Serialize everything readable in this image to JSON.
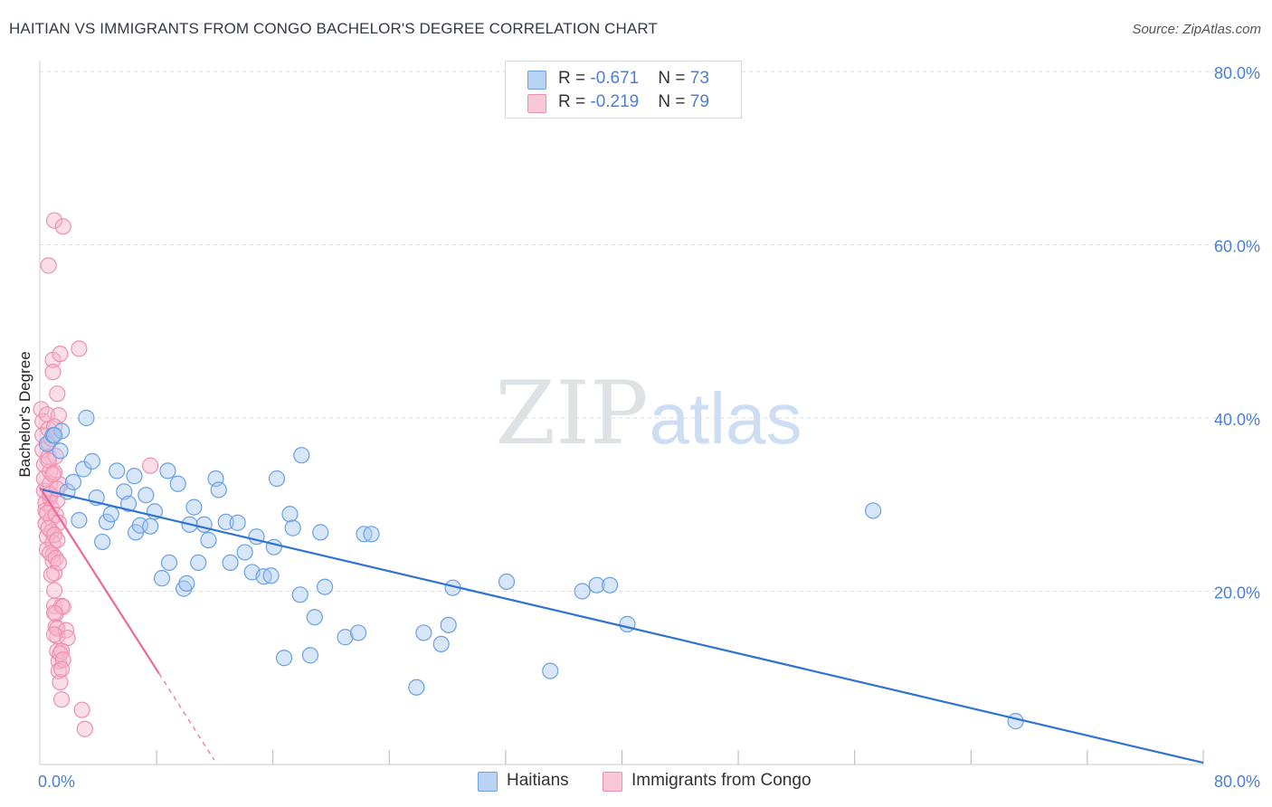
{
  "header": {
    "title": "HAITIAN VS IMMIGRANTS FROM CONGO BACHELOR'S DEGREE CORRELATION CHART",
    "source": "Source: ZipAtlas.com"
  },
  "watermark": {
    "zip": "ZIP",
    "atlas": "atlas"
  },
  "legend_top": {
    "rows": [
      {
        "r_label": "R = ",
        "r_value": "-0.671",
        "n_label": "N = ",
        "n_value": "73",
        "color": "#6aa0e6"
      },
      {
        "r_label": "R = ",
        "r_value": "-0.219",
        "n_label": "N = ",
        "n_value": "79",
        "color": "#ef8fb0"
      }
    ]
  },
  "legend_bottom": {
    "items": [
      {
        "label": "Haitians",
        "color": "#6aa0e6"
      },
      {
        "label": "Immigrants from Congo",
        "color": "#ef8fb0"
      }
    ]
  },
  "colors": {
    "haitians_fill": "#a9c8f1",
    "haitians_stroke": "#6aa0e6",
    "haitians_line": "#2f74d0",
    "congo_fill": "#f6b6cb",
    "congo_stroke": "#ef8fb0",
    "congo_line": "#e9699a",
    "grid": "#d8dde6",
    "tick_text": "#4a7fd4"
  },
  "chart_data": {
    "type": "scatter",
    "title": "HAITIAN VS IMMIGRANTS FROM CONGO BACHELOR'S DEGREE CORRELATION CHART",
    "xlabel": "",
    "ylabel": "Bachelor's Degree",
    "xlim": [
      0,
      80
    ],
    "ylim": [
      0,
      80
    ],
    "x_tick_labels": [
      {
        "value": 0,
        "label": "0.0%"
      },
      {
        "value": 80,
        "label": "80.0%"
      }
    ],
    "y_tick_labels": [
      {
        "value": 20,
        "label": "20.0%"
      },
      {
        "value": 40,
        "label": "40.0%"
      },
      {
        "value": 60,
        "label": "60.0%"
      },
      {
        "value": 80,
        "label": "80.0%"
      }
    ],
    "y_gridlines": [
      20,
      40,
      60,
      80
    ],
    "x_minor_ticks": [
      8,
      16,
      24,
      32,
      40,
      48,
      56,
      64,
      72
    ],
    "series": [
      {
        "name": "Haitians",
        "r": -0.671,
        "n": 73,
        "trend": {
          "x": [
            0,
            80
          ],
          "y": [
            31.8,
            0.2
          ],
          "dashed_to": null
        },
        "points": [
          [
            0.5,
            37.0
          ],
          [
            0.9,
            38.0
          ],
          [
            1.4,
            36.2
          ],
          [
            1.5,
            38.5
          ],
          [
            3.2,
            40.0
          ],
          [
            1.9,
            31.5
          ],
          [
            2.3,
            32.6
          ],
          [
            2.7,
            28.2
          ],
          [
            3.0,
            34.1
          ],
          [
            3.6,
            35.0
          ],
          [
            3.9,
            30.8
          ],
          [
            4.3,
            25.7
          ],
          [
            4.6,
            28.0
          ],
          [
            4.9,
            28.9
          ],
          [
            5.3,
            33.9
          ],
          [
            5.8,
            31.5
          ],
          [
            6.1,
            30.1
          ],
          [
            6.5,
            33.3
          ],
          [
            6.6,
            26.8
          ],
          [
            6.9,
            27.6
          ],
          [
            7.3,
            31.1
          ],
          [
            7.6,
            27.5
          ],
          [
            7.9,
            29.2
          ],
          [
            8.4,
            21.5
          ],
          [
            8.8,
            33.9
          ],
          [
            8.9,
            23.3
          ],
          [
            9.5,
            32.4
          ],
          [
            9.9,
            20.3
          ],
          [
            10.1,
            20.9
          ],
          [
            10.3,
            27.7
          ],
          [
            10.6,
            29.7
          ],
          [
            10.9,
            23.3
          ],
          [
            11.3,
            27.7
          ],
          [
            11.6,
            25.9
          ],
          [
            12.1,
            33.0
          ],
          [
            12.3,
            31.7
          ],
          [
            12.8,
            28.0
          ],
          [
            13.1,
            23.3
          ],
          [
            13.6,
            27.9
          ],
          [
            14.1,
            24.5
          ],
          [
            14.6,
            22.2
          ],
          [
            14.9,
            26.3
          ],
          [
            15.4,
            21.7
          ],
          [
            15.9,
            21.8
          ],
          [
            16.1,
            25.1
          ],
          [
            16.3,
            33.0
          ],
          [
            16.8,
            12.3
          ],
          [
            17.2,
            28.9
          ],
          [
            17.4,
            27.3
          ],
          [
            17.9,
            19.6
          ],
          [
            18.0,
            35.7
          ],
          [
            18.6,
            12.6
          ],
          [
            18.9,
            17.0
          ],
          [
            19.3,
            26.8
          ],
          [
            19.6,
            20.5
          ],
          [
            21.0,
            14.7
          ],
          [
            21.9,
            15.2
          ],
          [
            22.3,
            26.6
          ],
          [
            22.8,
            26.6
          ],
          [
            25.9,
            8.9
          ],
          [
            26.4,
            15.2
          ],
          [
            27.6,
            13.9
          ],
          [
            28.1,
            16.1
          ],
          [
            28.4,
            20.4
          ],
          [
            32.1,
            21.1
          ],
          [
            35.1,
            10.8
          ],
          [
            37.3,
            20.0
          ],
          [
            38.3,
            20.7
          ],
          [
            39.2,
            20.7
          ],
          [
            40.4,
            16.2
          ],
          [
            57.3,
            29.3
          ],
          [
            67.1,
            5.0
          ],
          [
            1.0,
            38.0
          ]
        ]
      },
      {
        "name": "Immigrants from Congo",
        "r": -0.219,
        "n": 79,
        "trend": {
          "x": [
            0,
            8.2
          ],
          "y": [
            32.0,
            10.5
          ],
          "dashed_x": [
            8.2,
            12.0
          ],
          "dashed_y": [
            10.5,
            0.5
          ]
        },
        "points": [
          [
            0.1,
            41.0
          ],
          [
            0.2,
            39.6
          ],
          [
            0.2,
            38.0
          ],
          [
            0.2,
            36.3
          ],
          [
            0.3,
            34.6
          ],
          [
            0.3,
            33.0
          ],
          [
            0.3,
            31.6
          ],
          [
            0.4,
            30.2
          ],
          [
            0.4,
            29.3
          ],
          [
            0.4,
            27.8
          ],
          [
            0.5,
            26.3
          ],
          [
            0.5,
            24.8
          ],
          [
            0.5,
            40.4
          ],
          [
            0.6,
            38.7
          ],
          [
            0.6,
            37.1
          ],
          [
            0.6,
            35.5
          ],
          [
            0.7,
            33.8
          ],
          [
            0.7,
            32.4
          ],
          [
            0.7,
            30.8
          ],
          [
            0.8,
            29.6
          ],
          [
            0.8,
            28.4
          ],
          [
            0.8,
            26.9
          ],
          [
            0.9,
            25.6
          ],
          [
            0.9,
            24.2
          ],
          [
            0.9,
            23.5
          ],
          [
            1.0,
            22.1
          ],
          [
            1.0,
            20.1
          ],
          [
            1.0,
            18.3
          ],
          [
            1.1,
            17.4
          ],
          [
            1.1,
            15.9
          ],
          [
            1.2,
            14.8
          ],
          [
            1.2,
            13.1
          ],
          [
            1.3,
            11.9
          ],
          [
            1.3,
            10.8
          ],
          [
            1.4,
            9.5
          ],
          [
            0.6,
            57.6
          ],
          [
            1.0,
            62.8
          ],
          [
            1.6,
            62.1
          ],
          [
            0.9,
            46.7
          ],
          [
            1.4,
            47.4
          ],
          [
            2.7,
            48.0
          ],
          [
            0.9,
            45.3
          ],
          [
            1.2,
            42.8
          ],
          [
            1.3,
            40.3
          ],
          [
            1.0,
            39.0
          ],
          [
            0.8,
            37.6
          ],
          [
            1.1,
            35.6
          ],
          [
            0.6,
            35.1
          ],
          [
            1.0,
            33.7
          ],
          [
            1.4,
            32.3
          ],
          [
            0.7,
            31.2
          ],
          [
            1.2,
            30.5
          ],
          [
            0.5,
            29.0
          ],
          [
            1.1,
            28.8
          ],
          [
            1.3,
            27.9
          ],
          [
            0.6,
            27.3
          ],
          [
            1.0,
            26.5
          ],
          [
            1.2,
            25.9
          ],
          [
            0.7,
            24.4
          ],
          [
            1.1,
            23.8
          ],
          [
            1.3,
            23.3
          ],
          [
            0.8,
            21.9
          ],
          [
            1.5,
            18.3
          ],
          [
            1.6,
            18.2
          ],
          [
            1.0,
            17.5
          ],
          [
            1.2,
            15.7
          ],
          [
            1.8,
            15.5
          ],
          [
            1.0,
            15.0
          ],
          [
            1.9,
            14.6
          ],
          [
            1.5,
            13.1
          ],
          [
            1.4,
            12.8
          ],
          [
            1.6,
            12.1
          ],
          [
            1.5,
            11.0
          ],
          [
            1.5,
            7.5
          ],
          [
            2.9,
            6.3
          ],
          [
            3.1,
            4.1
          ],
          [
            7.6,
            34.5
          ],
          [
            1.2,
            31.8
          ],
          [
            0.9,
            33.5
          ]
        ]
      }
    ]
  }
}
